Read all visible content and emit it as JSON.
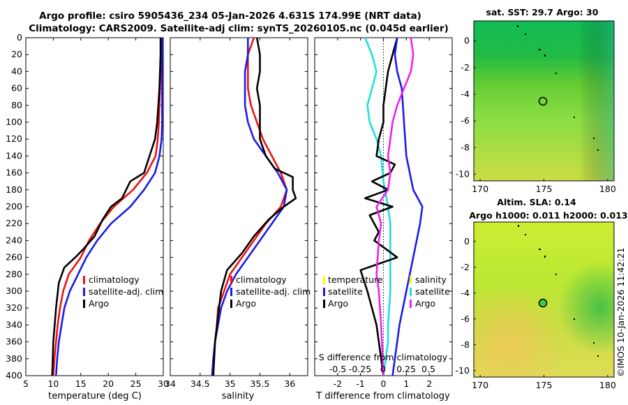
{
  "header": {
    "title_line1": "Argo profile: csiro 5905436_234 05-Jan-2026 4.631S 174.99E (NRT data)",
    "title_line2": "Climatology: CARS2009. Satellite-adj clim: synTS_20260105.nc (0.045d earlier)"
  },
  "colors": {
    "climatology": "#ee1111",
    "satellite": "#1a1aee",
    "argo": "#000000",
    "satellite_diff": "#22dddd",
    "argo_diff": "#ee22ee"
  },
  "icons": {
    "sst_marker": "circle-marker",
    "sla_marker": "circle-marker-green"
  },
  "chart_data": [
    {
      "type": "line",
      "id": "temperature_profile",
      "xlabel": "temperature (deg C)",
      "ylabel": "",
      "xlim": [
        5,
        30
      ],
      "ylim": [
        400,
        0
      ],
      "x_ticks": [
        5,
        10,
        15,
        20,
        25,
        30
      ],
      "y_ticks": [
        0,
        20,
        40,
        60,
        80,
        100,
        120,
        140,
        160,
        180,
        200,
        220,
        240,
        260,
        280,
        300,
        320,
        340,
        360,
        380,
        400
      ],
      "legend": [
        "climatology",
        "satellite-adj. clim",
        "Argo"
      ],
      "legend_position": "lower-right",
      "series": [
        {
          "name": "climatology",
          "color": "#ee1111",
          "points": [
            [
              29.6,
              0
            ],
            [
              29.6,
              20
            ],
            [
              29.5,
              40
            ],
            [
              29.4,
              60
            ],
            [
              29.3,
              80
            ],
            [
              29.2,
              100
            ],
            [
              29.0,
              120
            ],
            [
              28.6,
              140
            ],
            [
              27.0,
              160
            ],
            [
              24.5,
              180
            ],
            [
              21.0,
              200
            ],
            [
              18.5,
              220
            ],
            [
              16.5,
              240
            ],
            [
              15.0,
              260
            ],
            [
              12.8,
              280
            ],
            [
              11.8,
              300
            ],
            [
              11.2,
              320
            ],
            [
              10.8,
              340
            ],
            [
              10.5,
              360
            ],
            [
              10.2,
              380
            ],
            [
              10.0,
              400
            ]
          ]
        },
        {
          "name": "satellite-adj. clim",
          "color": "#1a1aee",
          "points": [
            [
              29.8,
              0
            ],
            [
              29.8,
              20
            ],
            [
              29.8,
              40
            ],
            [
              29.8,
              60
            ],
            [
              29.8,
              80
            ],
            [
              29.8,
              100
            ],
            [
              29.7,
              120
            ],
            [
              29.3,
              140
            ],
            [
              28.5,
              160
            ],
            [
              26.5,
              180
            ],
            [
              24.0,
              200
            ],
            [
              20.5,
              220
            ],
            [
              18.0,
              240
            ],
            [
              16.0,
              260
            ],
            [
              14.5,
              280
            ],
            [
              13.0,
              300
            ],
            [
              12.0,
              320
            ],
            [
              11.5,
              340
            ],
            [
              11.0,
              360
            ],
            [
              10.7,
              380
            ],
            [
              10.5,
              400
            ]
          ]
        },
        {
          "name": "Argo",
          "color": "#000000",
          "points": [
            [
              29.5,
              0
            ],
            [
              29.5,
              20
            ],
            [
              29.4,
              40
            ],
            [
              29.3,
              60
            ],
            [
              29.1,
              80
            ],
            [
              28.9,
              100
            ],
            [
              28.5,
              120
            ],
            [
              27.5,
              140
            ],
            [
              26.5,
              160
            ],
            [
              24.0,
              170
            ],
            [
              22.5,
              190
            ],
            [
              20.5,
              200
            ],
            [
              19.0,
              215
            ],
            [
              17.5,
              235
            ],
            [
              15.5,
              250
            ],
            [
              14.0,
              260
            ],
            [
              12.0,
              272
            ],
            [
              11.0,
              290
            ],
            [
              10.5,
              320
            ],
            [
              10.0,
              360
            ],
            [
              9.8,
              400
            ]
          ]
        }
      ]
    },
    {
      "type": "line",
      "id": "salinity_profile",
      "xlabel": "salinity",
      "ylabel": "",
      "xlim": [
        34,
        36.3
      ],
      "ylim": [
        400,
        0
      ],
      "x_ticks": [
        34,
        34.5,
        35,
        35.5,
        36
      ],
      "legend": [
        "climatology",
        "satellite-adj. clim",
        "Argo"
      ],
      "legend_position": "lower-right",
      "series": [
        {
          "name": "climatology",
          "color": "#ee1111",
          "points": [
            [
              35.4,
              0
            ],
            [
              35.3,
              20
            ],
            [
              35.3,
              40
            ],
            [
              35.3,
              60
            ],
            [
              35.35,
              80
            ],
            [
              35.45,
              100
            ],
            [
              35.55,
              120
            ],
            [
              35.7,
              140
            ],
            [
              35.85,
              160
            ],
            [
              35.95,
              180
            ],
            [
              35.85,
              200
            ],
            [
              35.6,
              220
            ],
            [
              35.4,
              240
            ],
            [
              35.2,
              260
            ],
            [
              35.0,
              280
            ],
            [
              34.9,
              300
            ],
            [
              34.8,
              320
            ],
            [
              34.78,
              340
            ],
            [
              34.75,
              360
            ],
            [
              34.72,
              380
            ],
            [
              34.7,
              400
            ]
          ]
        },
        {
          "name": "satellite-adj. clim",
          "color": "#1a1aee",
          "points": [
            [
              35.3,
              0
            ],
            [
              35.3,
              20
            ],
            [
              35.25,
              40
            ],
            [
              35.25,
              60
            ],
            [
              35.25,
              80
            ],
            [
              35.3,
              100
            ],
            [
              35.4,
              120
            ],
            [
              35.6,
              140
            ],
            [
              35.8,
              160
            ],
            [
              35.95,
              180
            ],
            [
              35.9,
              200
            ],
            [
              35.7,
              220
            ],
            [
              35.5,
              240
            ],
            [
              35.3,
              260
            ],
            [
              35.1,
              280
            ],
            [
              34.95,
              300
            ],
            [
              34.85,
              320
            ],
            [
              34.8,
              340
            ],
            [
              34.75,
              360
            ],
            [
              34.72,
              380
            ],
            [
              34.7,
              400
            ]
          ]
        },
        {
          "name": "Argo",
          "color": "#000000",
          "points": [
            [
              35.45,
              0
            ],
            [
              35.5,
              20
            ],
            [
              35.5,
              40
            ],
            [
              35.45,
              60
            ],
            [
              35.5,
              80
            ],
            [
              35.5,
              100
            ],
            [
              35.5,
              120
            ],
            [
              35.6,
              140
            ],
            [
              35.75,
              155
            ],
            [
              36.05,
              165
            ],
            [
              36.05,
              180
            ],
            [
              36.1,
              190
            ],
            [
              35.9,
              200
            ],
            [
              35.65,
              215
            ],
            [
              35.4,
              235
            ],
            [
              35.2,
              255
            ],
            [
              34.95,
              275
            ],
            [
              34.85,
              300
            ],
            [
              34.8,
              330
            ],
            [
              34.75,
              360
            ],
            [
              34.72,
              400
            ]
          ]
        }
      ]
    },
    {
      "type": "line",
      "id": "difference_profile",
      "xlabel": "T difference from climatology",
      "xlabel_top": "S difference from climatology",
      "xlim": [
        -3,
        3
      ],
      "ylim": [
        400,
        0
      ],
      "x_ticks": [
        -2,
        -1,
        0,
        1,
        2
      ],
      "x_ticks_top_labels": [
        "-0.5",
        "-0.25",
        "0",
        "0.25",
        "0.5"
      ],
      "legend_temperature": [
        "temperature",
        "satellite",
        "Argo"
      ],
      "legend_salinity": [
        "salinity",
        "satellite",
        "Argo"
      ],
      "legend_position": "lower",
      "series": [
        {
          "name": "temperature satellite",
          "color": "#22dddd",
          "points": [
            [
              -0.8,
              0
            ],
            [
              -0.5,
              20
            ],
            [
              -0.3,
              40
            ],
            [
              -0.5,
              60
            ],
            [
              -0.7,
              80
            ],
            [
              -0.6,
              100
            ],
            [
              -0.3,
              120
            ],
            [
              -0.1,
              140
            ],
            [
              0.0,
              170
            ],
            [
              0.2,
              200
            ],
            [
              0.3,
              220
            ],
            [
              0.3,
              240
            ],
            [
              0.3,
              280
            ],
            [
              0.3,
              300
            ],
            [
              0.2,
              340
            ],
            [
              0.2,
              360
            ],
            [
              0.1,
              380
            ],
            [
              0.0,
              400
            ]
          ]
        },
        {
          "name": "temperature Argo",
          "color": "#000000",
          "points": [
            [
              0.6,
              0
            ],
            [
              0.4,
              20
            ],
            [
              0.2,
              40
            ],
            [
              0.1,
              60
            ],
            [
              0.0,
              80
            ],
            [
              0.0,
              100
            ],
            [
              -0.2,
              120
            ],
            [
              -0.3,
              140
            ],
            [
              0.5,
              150
            ],
            [
              0.3,
              160
            ],
            [
              -0.5,
              170
            ],
            [
              0.2,
              180
            ],
            [
              -0.8,
              190
            ],
            [
              0.4,
              200
            ],
            [
              -0.6,
              210
            ],
            [
              -0.2,
              230
            ],
            [
              -0.4,
              240
            ],
            [
              0.6,
              260
            ],
            [
              -1.0,
              275
            ],
            [
              -0.7,
              300
            ],
            [
              -0.3,
              340
            ],
            [
              -0.1,
              380
            ],
            [
              0.0,
              400
            ]
          ]
        },
        {
          "name": "salinity satellite",
          "color": "#1a1aee",
          "points": [
            [
              0.6,
              0
            ],
            [
              0.5,
              20
            ],
            [
              0.6,
              40
            ],
            [
              0.8,
              60
            ],
            [
              0.9,
              100
            ],
            [
              1.0,
              140
            ],
            [
              1.3,
              180
            ],
            [
              1.7,
              200
            ],
            [
              1.6,
              220
            ],
            [
              1.3,
              260
            ],
            [
              1.0,
              300
            ],
            [
              0.7,
              340
            ],
            [
              0.5,
              380
            ],
            [
              0.4,
              400
            ]
          ]
        },
        {
          "name": "salinity Argo",
          "color": "#ee22ee",
          "points": [
            [
              1.2,
              0
            ],
            [
              1.3,
              20
            ],
            [
              1.2,
              40
            ],
            [
              0.9,
              60
            ],
            [
              0.6,
              80
            ],
            [
              0.4,
              100
            ],
            [
              0.3,
              120
            ],
            [
              0.2,
              140
            ],
            [
              0.3,
              160
            ],
            [
              0.2,
              180
            ],
            [
              -0.3,
              200
            ],
            [
              -0.1,
              220
            ],
            [
              -0.2,
              240
            ],
            [
              -0.3,
              280
            ],
            [
              -0.2,
              300
            ],
            [
              -0.1,
              340
            ],
            [
              0.0,
              400
            ]
          ]
        }
      ]
    },
    {
      "type": "heatmap",
      "id": "sat_sst_map",
      "title": "sat. SST: 29.7 Argo: 30",
      "xlim": [
        169.5,
        180.5
      ],
      "ylim": [
        -10.5,
        1.5
      ],
      "x_ticks": [
        170,
        175,
        180
      ],
      "y_ticks": [
        0,
        -2,
        -4,
        -6,
        -8,
        -10
      ],
      "marker": {
        "lon": 174.99,
        "lat": -4.631
      }
    },
    {
      "type": "heatmap",
      "id": "altim_sla_map",
      "title_line1": "Altim. SLA: 0.14",
      "title_line2": "Argo h1000: 0.011 h2000: 0.013",
      "xlim": [
        169.5,
        180.5
      ],
      "ylim": [
        -10.5,
        1.5
      ],
      "x_ticks": [
        170,
        175,
        180
      ],
      "y_ticks": [
        0,
        -2,
        -4,
        -6,
        -8,
        -10
      ],
      "marker": {
        "lon": 174.99,
        "lat": -4.631
      }
    }
  ],
  "footer": {
    "copyright": "©IMOS 10-Jan-2026 11:42:21"
  }
}
